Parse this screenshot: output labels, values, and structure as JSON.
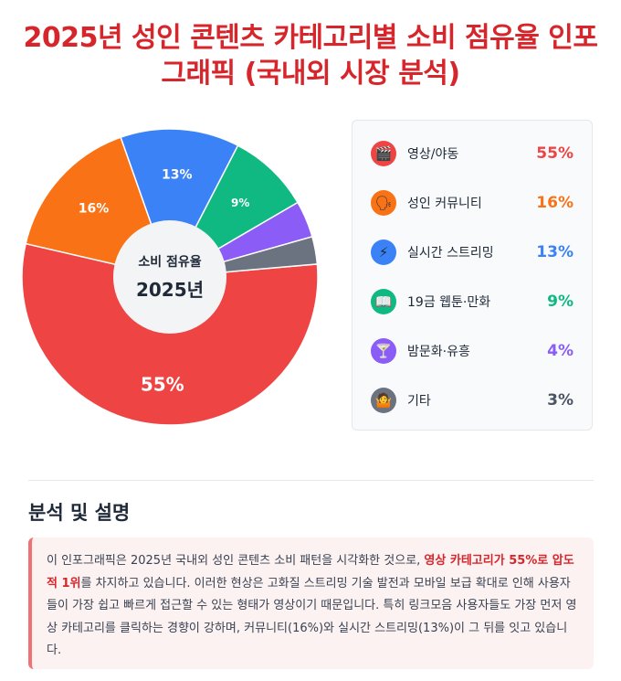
{
  "title": "2025년 성인 콘텐츠 카테고리별 소비 점유율 인포그래픽 (국내외 시장 분석)",
  "chart_data": {
    "type": "pie",
    "center_label": {
      "line1": "소비 점유율",
      "line2": "2025년"
    },
    "series": [
      {
        "name": "영상/야동",
        "value": 55,
        "label": "55%",
        "color": "#ef4444",
        "icon": "clapperboard-icon"
      },
      {
        "name": "성인 커뮤니티",
        "value": 16,
        "label": "16%",
        "color": "#f97316",
        "icon": "people-talking-icon"
      },
      {
        "name": "실시간 스트리밍",
        "value": 13,
        "label": "13%",
        "color": "#3b82f6",
        "icon": "lightning-icon"
      },
      {
        "name": "19금 웹툰·만화",
        "value": 9,
        "label": "9%",
        "color": "#10b981",
        "icon": "open-book-icon"
      },
      {
        "name": "밤문화·유흥",
        "value": 4,
        "label": "4%",
        "color": "#8b5cf6",
        "icon": "cocktail-glass-icon"
      },
      {
        "name": "기타",
        "value": 3,
        "label": "3%",
        "color": "#6b7280",
        "icon": "shrugging-person-icon"
      }
    ]
  },
  "legend": [
    {
      "label": "영상/야동",
      "value": "55%",
      "color": "#ef4444",
      "icon_bg": "#ef4444",
      "glyph": "🎬"
    },
    {
      "label": "성인 커뮤니티",
      "value": "16%",
      "color": "#f97316",
      "icon_bg": "#f97316",
      "glyph": "🗣"
    },
    {
      "label": "실시간 스트리밍",
      "value": "13%",
      "color": "#3b82f6",
      "icon_bg": "#3b82f6",
      "glyph": "⚡"
    },
    {
      "label": "19금 웹툰·만화",
      "value": "9%",
      "color": "#10b981",
      "icon_bg": "#10b981",
      "glyph": "📖"
    },
    {
      "label": "밤문화·유흥",
      "value": "4%",
      "color": "#8b5cf6",
      "icon_bg": "#8b5cf6",
      "glyph": "🍸"
    },
    {
      "label": "기타",
      "value": "3%",
      "color": "#4b5563",
      "icon_bg": "#6b7280",
      "glyph": "🤷"
    }
  ],
  "analysis": {
    "heading": "분석 및 설명",
    "text_before": "이 인포그래픽은 2025년 국내외 성인 콘텐츠 소비 패턴을 시각화한 것으로, ",
    "highlight": "영상 카테고리가 55%로 압도적 1위",
    "text_after": "를 차지하고 있습니다. 이러한 현상은 고화질 스트리밍 기술 발전과 모바일 보급 확대로 인해 사용자들이 가장 쉽고 빠르게 접근할 수 있는 형태가 영상이기 때문입니다. 특히 링크모음 사용자들도 가장 먼저 영상 카테고리를 클릭하는 경향이 강하며, 커뮤니티(16%)와 실시간 스트리밍(13%)이 그 뒤를 잇고 있습니다."
  }
}
